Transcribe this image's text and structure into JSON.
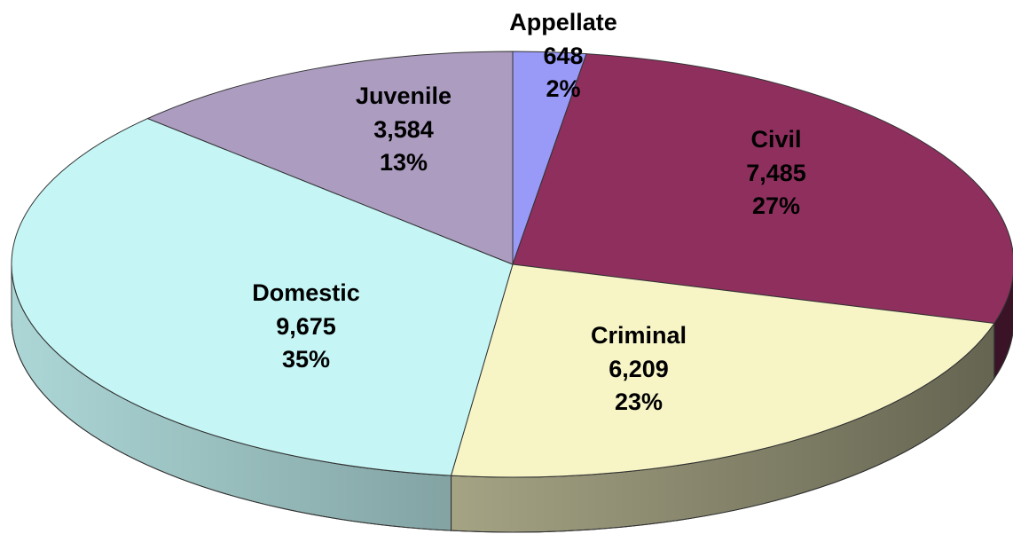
{
  "chart_data": {
    "type": "pie",
    "categories": [
      "Appellate",
      "Civil",
      "Criminal",
      "Domestic",
      "Juvenile"
    ],
    "values": [
      648,
      7485,
      6209,
      9675,
      3584
    ],
    "value_labels": [
      "648",
      "7,485",
      "6,209",
      "9,675",
      "3,584"
    ],
    "percent_labels": [
      "2%",
      "27%",
      "23%",
      "35%",
      "13%"
    ],
    "colors": [
      "#9999f7",
      "#8f2f5e",
      "#f7f5c6",
      "#c5f5f5",
      "#ac9cc0"
    ]
  }
}
